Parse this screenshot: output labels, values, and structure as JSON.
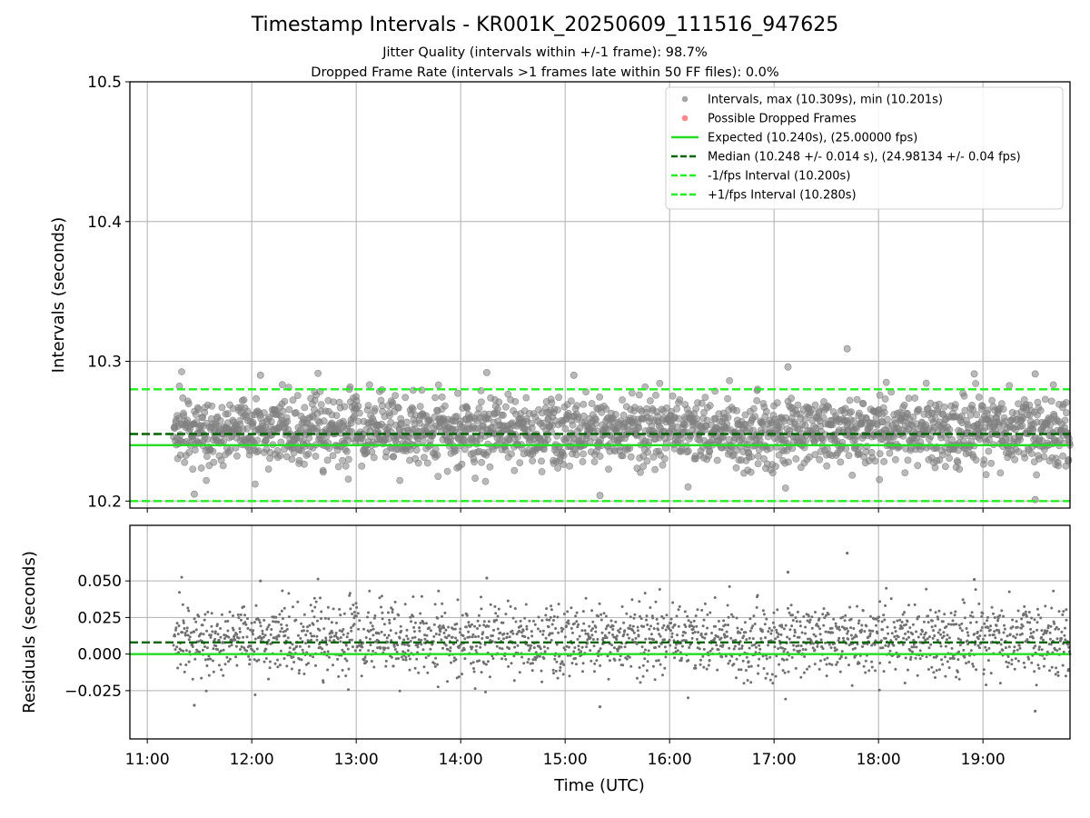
{
  "chart_data": [
    {
      "type": "scatter",
      "title": "Timestamp Intervals - KR001K_20250609_111516_947625",
      "subtitle_lines": [
        "Jitter Quality (intervals within +/-1 frame): 98.7%",
        "Dropped Frame Rate (intervals >1 frames late within 50 FF files): 0.0%"
      ],
      "ylabel": "Intervals (seconds)",
      "ylim": [
        10.195,
        10.5
      ],
      "yticks": [
        10.2,
        10.3,
        10.4,
        10.5
      ],
      "ytick_labels": [
        "10.2",
        "10.3",
        "10.4",
        "10.5"
      ],
      "xlim": [
        "10:50",
        "19:50"
      ],
      "grid": true,
      "legend_position": "top-right",
      "legend": [
        {
          "label": "Intervals, max (10.309s), min (10.201s)",
          "style": "marker",
          "color": "#808080"
        },
        {
          "label": "Possible Dropped Frames",
          "style": "marker",
          "color": "#ff5555"
        },
        {
          "label": "Expected (10.240s), (25.00000 fps)",
          "style": "solid",
          "color": "#22dd22"
        },
        {
          "label": "Median (10.248 +/- 0.014 s), (24.98134 +/- 0.04 fps)",
          "style": "dashed",
          "color": "#006400"
        },
        {
          "label": "-1/fps Interval (10.200s)",
          "style": "dashed",
          "color": "#22ee22"
        },
        {
          "label": "+1/fps Interval (10.280s)",
          "style": "dashed",
          "color": "#22ee22"
        }
      ],
      "reference_lines": [
        {
          "y": 10.24,
          "style": "solid",
          "color": "#22dd22"
        },
        {
          "y": 10.248,
          "style": "dashed",
          "color": "#006400"
        },
        {
          "y": 10.2,
          "style": "dashed",
          "color": "#22ee22"
        },
        {
          "y": 10.28,
          "style": "dashed",
          "color": "#22ee22"
        }
      ],
      "series": [
        {
          "name": "Intervals",
          "color": "#808080",
          "x_start": "11:15",
          "x_end": "19:50",
          "y_center": 10.25,
          "y_min": 10.201,
          "y_max": 10.309,
          "count_estimate": 3020,
          "notable_points": [
            {
              "x": "17:42",
              "y": 10.309
            },
            {
              "x": "14:15",
              "y": 10.292
            },
            {
              "x": "17:08",
              "y": 10.296
            },
            {
              "x": "15:05",
              "y": 10.29
            },
            {
              "x": "19:30",
              "y": 10.291
            },
            {
              "x": "18:55",
              "y": 10.291
            },
            {
              "x": "12:05",
              "y": 10.29
            },
            {
              "x": "11:27",
              "y": 10.205
            },
            {
              "x": "15:20",
              "y": 10.204
            },
            {
              "x": "19:30",
              "y": 10.201
            }
          ]
        }
      ]
    },
    {
      "type": "scatter",
      "ylabel": "Residuals (seconds)",
      "xlabel": "Time (UTC)",
      "ylim": [
        -0.058,
        0.088
      ],
      "yticks": [
        -0.025,
        0.0,
        0.025,
        0.05
      ],
      "ytick_labels": [
        "−0.025",
        "0.000",
        "0.025",
        "0.050"
      ],
      "xlim": [
        "10:50",
        "19:50"
      ],
      "xticks": [
        "11:00",
        "12:00",
        "13:00",
        "14:00",
        "15:00",
        "16:00",
        "17:00",
        "18:00",
        "19:00"
      ],
      "xtick_labels": [
        "11:00",
        "12:00",
        "13:00",
        "14:00",
        "15:00",
        "16:00",
        "17:00",
        "18:00",
        "19:00"
      ],
      "grid": true,
      "reference_lines": [
        {
          "y": 0.0,
          "style": "solid",
          "color": "#22dd22"
        },
        {
          "y": 0.008,
          "style": "dashed",
          "color": "#006400"
        }
      ],
      "series": [
        {
          "name": "Residuals",
          "color": "#707070",
          "x_start": "11:15",
          "x_end": "19:50",
          "y_center": 0.01,
          "y_min": -0.04,
          "y_max": 0.07,
          "count_estimate": 3020,
          "notable_points": [
            {
              "x": "17:42",
              "y": 0.069
            },
            {
              "x": "17:08",
              "y": 0.056
            },
            {
              "x": "14:15",
              "y": 0.052
            },
            {
              "x": "18:55",
              "y": 0.051
            },
            {
              "x": "12:05",
              "y": 0.05
            },
            {
              "x": "19:30",
              "y": -0.039
            },
            {
              "x": "15:20",
              "y": -0.036
            },
            {
              "x": "11:27",
              "y": -0.035
            }
          ]
        }
      ]
    }
  ]
}
